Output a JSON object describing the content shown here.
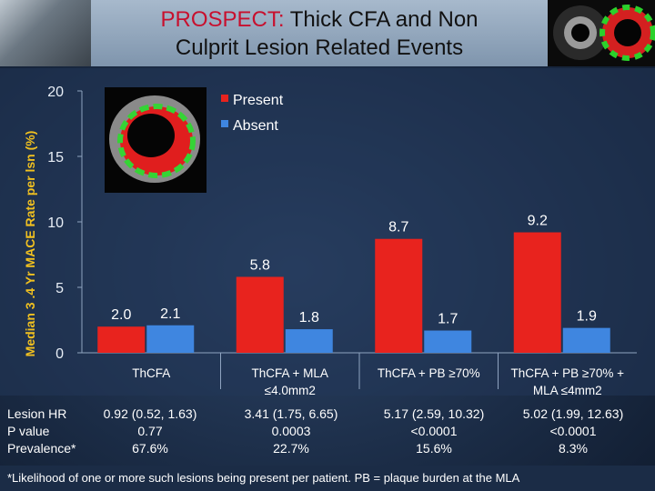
{
  "title": {
    "accent": "PROSPECT:",
    "line1_rest": " Thick CFA and Non",
    "line2": "Culprit Lesion Related Events"
  },
  "chart_data": {
    "type": "bar",
    "ylabel": "Median 3 .4 Yr MACE Rate per lsn (%)",
    "ylim": [
      0,
      20
    ],
    "yticks": [
      0,
      5,
      10,
      15,
      20
    ],
    "categories": [
      [
        "ThCFA"
      ],
      [
        "ThCFA + MLA",
        "≤4.0mm2"
      ],
      [
        "ThCFA + PB ≥70%"
      ],
      [
        "ThCFA + PB ≥70% +",
        "MLA ≤4mm2"
      ]
    ],
    "series": [
      {
        "name": "Present",
        "color": "#e8231e",
        "values": [
          2.0,
          5.8,
          8.7,
          9.2
        ],
        "labels": [
          "2.0",
          "5.8",
          "8.7",
          "9.2"
        ]
      },
      {
        "name": "Absent",
        "color": "#3f86e0",
        "values": [
          2.1,
          1.8,
          1.7,
          1.9
        ],
        "labels": [
          "2.1",
          "1.8",
          "1.7",
          "1.9"
        ]
      }
    ],
    "legend_position": "top-center"
  },
  "stats": {
    "labels": [
      "Lesion HR",
      "P value",
      "Prevalence*"
    ],
    "columns": [
      [
        "0.92 (0.52, 1.63)",
        "0.77",
        "67.6%"
      ],
      [
        "3.41 (1.75, 6.65)",
        "0.0003",
        "22.7%"
      ],
      [
        "5.17 (2.59, 10.32)",
        "<0.0001",
        "15.6%"
      ],
      [
        "5.02 (1.99, 12.63)",
        "<0.0001",
        "8.3%"
      ]
    ]
  },
  "footnote": "*Likelihood of one or more such lesions being present per patient. PB = plaque burden at the MLA"
}
